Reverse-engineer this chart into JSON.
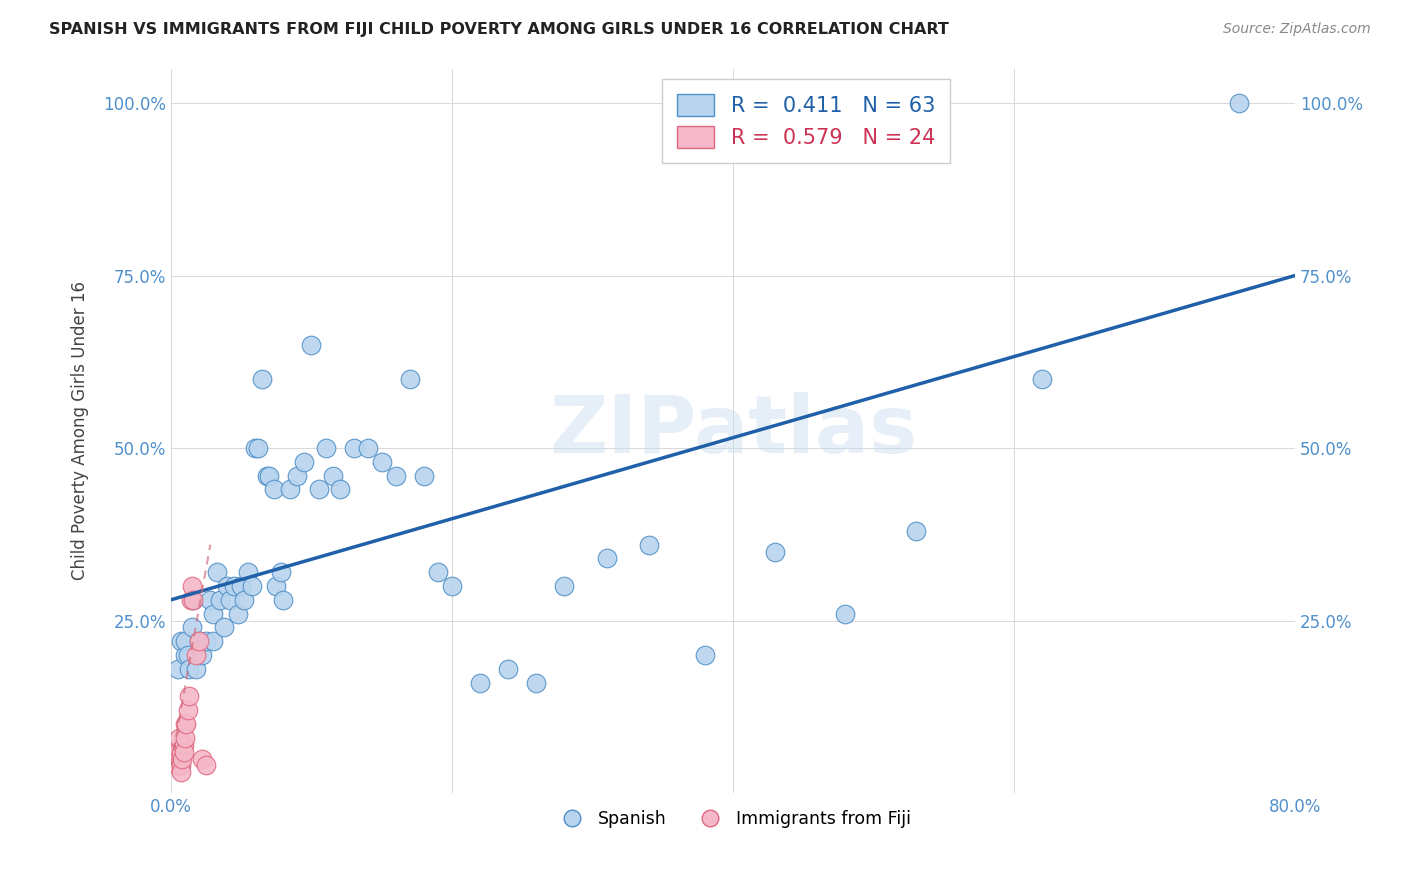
{
  "title": "SPANISH VS IMMIGRANTS FROM FIJI CHILD POVERTY AMONG GIRLS UNDER 16 CORRELATION CHART",
  "source": "Source: ZipAtlas.com",
  "ylabel": "Child Poverty Among Girls Under 16",
  "watermark": "ZIPatlas",
  "xlim": [
    0.0,
    0.8
  ],
  "ylim": [
    0.0,
    1.05
  ],
  "legend_blue_R": "0.411",
  "legend_blue_N": "63",
  "legend_pink_R": "0.579",
  "legend_pink_N": "24",
  "blue_color": "#b8d4ee",
  "pink_color": "#f4b8c8",
  "blue_edge_color": "#5090c8",
  "pink_edge_color": "#e06880",
  "blue_line_color": "#2060a8",
  "pink_line_color": "#d06878",
  "grid_color": "#d8d8d8",
  "title_color": "#222222",
  "source_color": "#888888",
  "tick_color": "#5090cc",
  "ylabel_color": "#444444",
  "spanish_x": [
    0.005,
    0.007,
    0.01,
    0.01,
    0.012,
    0.013,
    0.015,
    0.016,
    0.018,
    0.02,
    0.022,
    0.025,
    0.028,
    0.03,
    0.03,
    0.033,
    0.035,
    0.038,
    0.04,
    0.042,
    0.045,
    0.048,
    0.05,
    0.052,
    0.055,
    0.058,
    0.06,
    0.062,
    0.065,
    0.068,
    0.07,
    0.073,
    0.075,
    0.078,
    0.08,
    0.085,
    0.09,
    0.095,
    0.1,
    0.105,
    0.11,
    0.115,
    0.12,
    0.13,
    0.14,
    0.15,
    0.16,
    0.17,
    0.18,
    0.19,
    0.2,
    0.22,
    0.24,
    0.26,
    0.28,
    0.31,
    0.34,
    0.38,
    0.43,
    0.48,
    0.53,
    0.62,
    0.76
  ],
  "spanish_y": [
    0.18,
    0.22,
    0.2,
    0.22,
    0.2,
    0.18,
    0.24,
    0.28,
    0.18,
    0.22,
    0.2,
    0.22,
    0.28,
    0.26,
    0.22,
    0.32,
    0.28,
    0.24,
    0.3,
    0.28,
    0.3,
    0.26,
    0.3,
    0.28,
    0.32,
    0.3,
    0.5,
    0.5,
    0.6,
    0.46,
    0.46,
    0.44,
    0.3,
    0.32,
    0.28,
    0.44,
    0.46,
    0.48,
    0.65,
    0.44,
    0.5,
    0.46,
    0.44,
    0.5,
    0.5,
    0.48,
    0.46,
    0.6,
    0.46,
    0.32,
    0.3,
    0.16,
    0.18,
    0.16,
    0.3,
    0.34,
    0.36,
    0.2,
    0.35,
    0.26,
    0.38,
    0.6,
    1.0
  ],
  "fiji_x": [
    0.003,
    0.004,
    0.005,
    0.005,
    0.006,
    0.006,
    0.007,
    0.007,
    0.007,
    0.008,
    0.009,
    0.009,
    0.01,
    0.01,
    0.011,
    0.012,
    0.013,
    0.014,
    0.015,
    0.016,
    0.018,
    0.02,
    0.022,
    0.025
  ],
  "fiji_y": [
    0.06,
    0.04,
    0.06,
    0.04,
    0.08,
    0.05,
    0.06,
    0.04,
    0.03,
    0.05,
    0.07,
    0.06,
    0.1,
    0.08,
    0.1,
    0.12,
    0.14,
    0.28,
    0.3,
    0.28,
    0.2,
    0.22,
    0.05,
    0.04
  ],
  "blue_line_x0": 0.0,
  "blue_line_y0": 0.28,
  "blue_line_x1": 0.8,
  "blue_line_y1": 0.75,
  "pink_line_x0": 0.0,
  "pink_line_y0": 0.04,
  "pink_line_x1": 0.028,
  "pink_line_y1": 0.36
}
